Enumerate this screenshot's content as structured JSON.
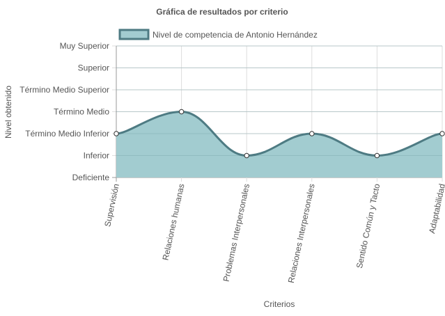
{
  "chart_data": {
    "type": "area",
    "title": "Gráfica de resultados por criterio",
    "xlabel": "Criterios",
    "ylabel": "Nivel obtenido",
    "categories": [
      "Supervisión",
      "Relaciones humanas",
      "Problemas Interpersonales",
      "Relaciones Interpersonales",
      "Sentido Común y Tacto",
      "Adaptabilidad"
    ],
    "y_levels": [
      "Deficiente",
      "Inferior",
      "Término Medio Inferior",
      "Término Medio",
      "Término Medio Superior",
      "Superior",
      "Muy Superior"
    ],
    "ylim": [
      0,
      6
    ],
    "grid": true,
    "legend_position": "top-left",
    "series": [
      {
        "name": "Nivel de competencia de Antonio Hernández",
        "values": [
          2,
          3,
          1,
          2,
          1,
          2
        ],
        "value_labels": [
          "Término Medio Inferior",
          "Término Medio",
          "Inferior",
          "Término Medio Inferior",
          "Inferior",
          "Término Medio Inferior"
        ],
        "fill_color": "#a2ccd0",
        "line_color": "#4e7b83",
        "point_fill": "#ffffff"
      }
    ],
    "grid_color": "#dddddd",
    "axis_color": "#999999"
  }
}
